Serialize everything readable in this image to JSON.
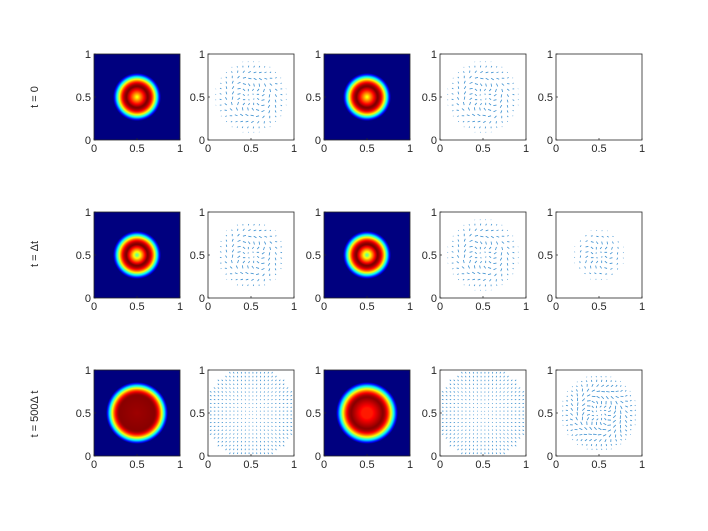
{
  "chart_data": {
    "type": "grid-of-plots",
    "layout": {
      "rows": 3,
      "cols": 5
    },
    "row_labels": [
      "t = 0",
      "t = Δt",
      "t = 500Δ t"
    ],
    "axes": {
      "xlim": [
        0,
        1
      ],
      "ylim": [
        0,
        1
      ],
      "xticks": [
        0,
        0.5,
        1
      ],
      "yticks": [
        0,
        0.5,
        1
      ],
      "xtick_labels": [
        "0",
        "0.5",
        "1"
      ],
      "ytick_labels": [
        "0",
        "0.5",
        "1"
      ]
    },
    "colormap": [
      "#00007f",
      "#0000ff",
      "#007fff",
      "#00ffff",
      "#7fff7f",
      "#ffff00",
      "#ff7f00",
      "#ff0000",
      "#7f0000"
    ],
    "colors": {
      "quiver": "#3a8fd0",
      "axis": "#262626"
    },
    "panels": [
      [
        {
          "kind": "heatmap",
          "profile": "ring",
          "ring_radius": 0.12,
          "ring_width": 0.07,
          "outer_radius": 0.28,
          "center_value": 0.6
        },
        {
          "kind": "quiver",
          "pattern": "spiral",
          "extent": 0.42,
          "density": 16,
          "scale": 0.6
        },
        {
          "kind": "heatmap",
          "profile": "ring",
          "ring_radius": 0.12,
          "ring_width": 0.07,
          "outer_radius": 0.28,
          "center_value": 0.6
        },
        {
          "kind": "quiver",
          "pattern": "spiral",
          "extent": 0.42,
          "density": 16,
          "scale": 0.6
        },
        {
          "kind": "empty"
        }
      ],
      [
        {
          "kind": "heatmap",
          "profile": "ring",
          "ring_radius": 0.12,
          "ring_width": 0.07,
          "outer_radius": 0.28,
          "center_value": 0.45
        },
        {
          "kind": "quiver",
          "pattern": "spiral",
          "extent": 0.4,
          "density": 16,
          "scale": 0.6
        },
        {
          "kind": "heatmap",
          "profile": "ring",
          "ring_radius": 0.12,
          "ring_width": 0.07,
          "outer_radius": 0.28,
          "center_value": 0.45
        },
        {
          "kind": "quiver",
          "pattern": "spiral",
          "extent": 0.42,
          "density": 16,
          "scale": 0.6
        },
        {
          "kind": "quiver",
          "pattern": "spiral",
          "extent": 0.3,
          "density": 16,
          "scale": 0.55
        }
      ],
      [
        {
          "kind": "heatmap",
          "profile": "plateau",
          "ring_radius": 0.0,
          "ring_width": 0.2,
          "outer_radius": 0.36,
          "center_value": 0.97
        },
        {
          "kind": "quiver",
          "pattern": "radial",
          "extent": 0.55,
          "density": 22,
          "scale": 0.45
        },
        {
          "kind": "heatmap",
          "profile": "plateau",
          "ring_radius": 0.06,
          "ring_width": 0.12,
          "outer_radius": 0.36,
          "center_value": 0.85
        },
        {
          "kind": "quiver",
          "pattern": "radial",
          "extent": 0.55,
          "density": 22,
          "scale": 0.45
        },
        {
          "kind": "quiver",
          "pattern": "spiral",
          "extent": 0.45,
          "density": 18,
          "scale": 0.75
        }
      ]
    ]
  }
}
